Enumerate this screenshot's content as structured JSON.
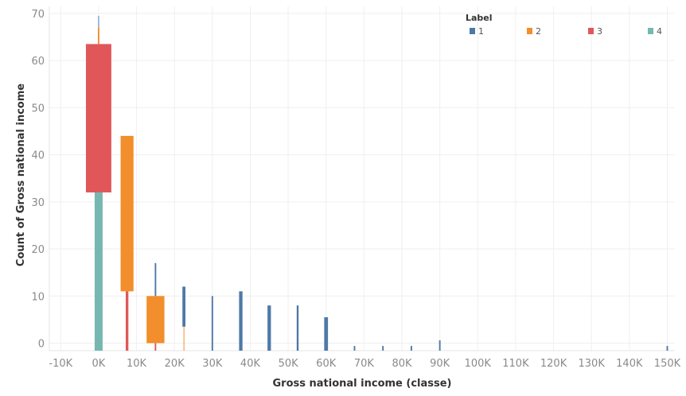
{
  "chart_data": {
    "type": "bar",
    "xlabel": "Gross national income (classe)",
    "ylabel": "Count of Gross national income",
    "xlim": [
      -13000,
      152000
    ],
    "ylim": [
      -1.6,
      71.5
    ],
    "x_ticks": [
      "-10K",
      "0K",
      "10K",
      "20K",
      "30K",
      "40K",
      "50K",
      "60K",
      "70K",
      "80K",
      "90K",
      "100K",
      "110K",
      "120K",
      "130K",
      "140K",
      "150K"
    ],
    "y_ticks": [
      "0",
      "10",
      "20",
      "30",
      "40",
      "50",
      "60",
      "70"
    ],
    "grid": true,
    "legend": {
      "title": "Label",
      "position": "top-right",
      "entries": [
        {
          "label": "1",
          "color": "#4e79a7"
        },
        {
          "label": "2",
          "color": "#f28e2b"
        },
        {
          "label": "3",
          "color": "#e15759"
        },
        {
          "label": "4",
          "color": "#76b7b2"
        }
      ]
    },
    "bars": [
      {
        "label": "4",
        "x": 0,
        "y0": -1.6,
        "y1": 32,
        "width": 2100
      },
      {
        "label": "1",
        "x": 0,
        "y0": 67,
        "y1": 69.5,
        "width": 200
      },
      {
        "label": "3",
        "x": 0,
        "y0": 32,
        "y1": 63.5,
        "width": 6700
      },
      {
        "label": "2",
        "x": 0,
        "y0": 63.5,
        "y1": 67,
        "width": 400
      },
      {
        "label": "3",
        "x": 7500,
        "y0": -1.6,
        "y1": 11,
        "width": 700
      },
      {
        "label": "2",
        "x": 7500,
        "y0": 11,
        "y1": 44,
        "width": 3400
      },
      {
        "label": "3",
        "x": 15000,
        "y0": -1.6,
        "y1": 0,
        "width": 400
      },
      {
        "label": "2",
        "x": 15000,
        "y0": 0,
        "y1": 10,
        "width": 4700
      },
      {
        "label": "1",
        "x": 15000,
        "y0": 10,
        "y1": 17,
        "width": 400
      },
      {
        "label": "2",
        "x": 22500,
        "y0": -1.6,
        "y1": 3.5,
        "width": 200
      },
      {
        "label": "1",
        "x": 22500,
        "y0": 3.5,
        "y1": 12,
        "width": 800
      },
      {
        "label": "1",
        "x": 30000,
        "y0": -1.6,
        "y1": 10,
        "width": 400
      },
      {
        "label": "1",
        "x": 37500,
        "y0": -1.6,
        "y1": 11,
        "width": 900
      },
      {
        "label": "1",
        "x": 45000,
        "y0": -1.6,
        "y1": 8,
        "width": 900
      },
      {
        "label": "1",
        "x": 52500,
        "y0": -1.6,
        "y1": 8,
        "width": 500
      },
      {
        "label": "1",
        "x": 60000,
        "y0": -1.6,
        "y1": 5.5,
        "width": 1000
      },
      {
        "label": "1",
        "x": 67500,
        "y0": -1.6,
        "y1": -0.6,
        "width": 400
      },
      {
        "label": "1",
        "x": 75000,
        "y0": -1.6,
        "y1": -0.6,
        "width": 400
      },
      {
        "label": "1",
        "x": 82500,
        "y0": -1.6,
        "y1": -0.6,
        "width": 400
      },
      {
        "label": "1",
        "x": 90000,
        "y0": -1.6,
        "y1": 0.6,
        "width": 400
      },
      {
        "label": "1",
        "x": 150000,
        "y0": -1.6,
        "y1": -0.6,
        "width": 400
      }
    ]
  }
}
